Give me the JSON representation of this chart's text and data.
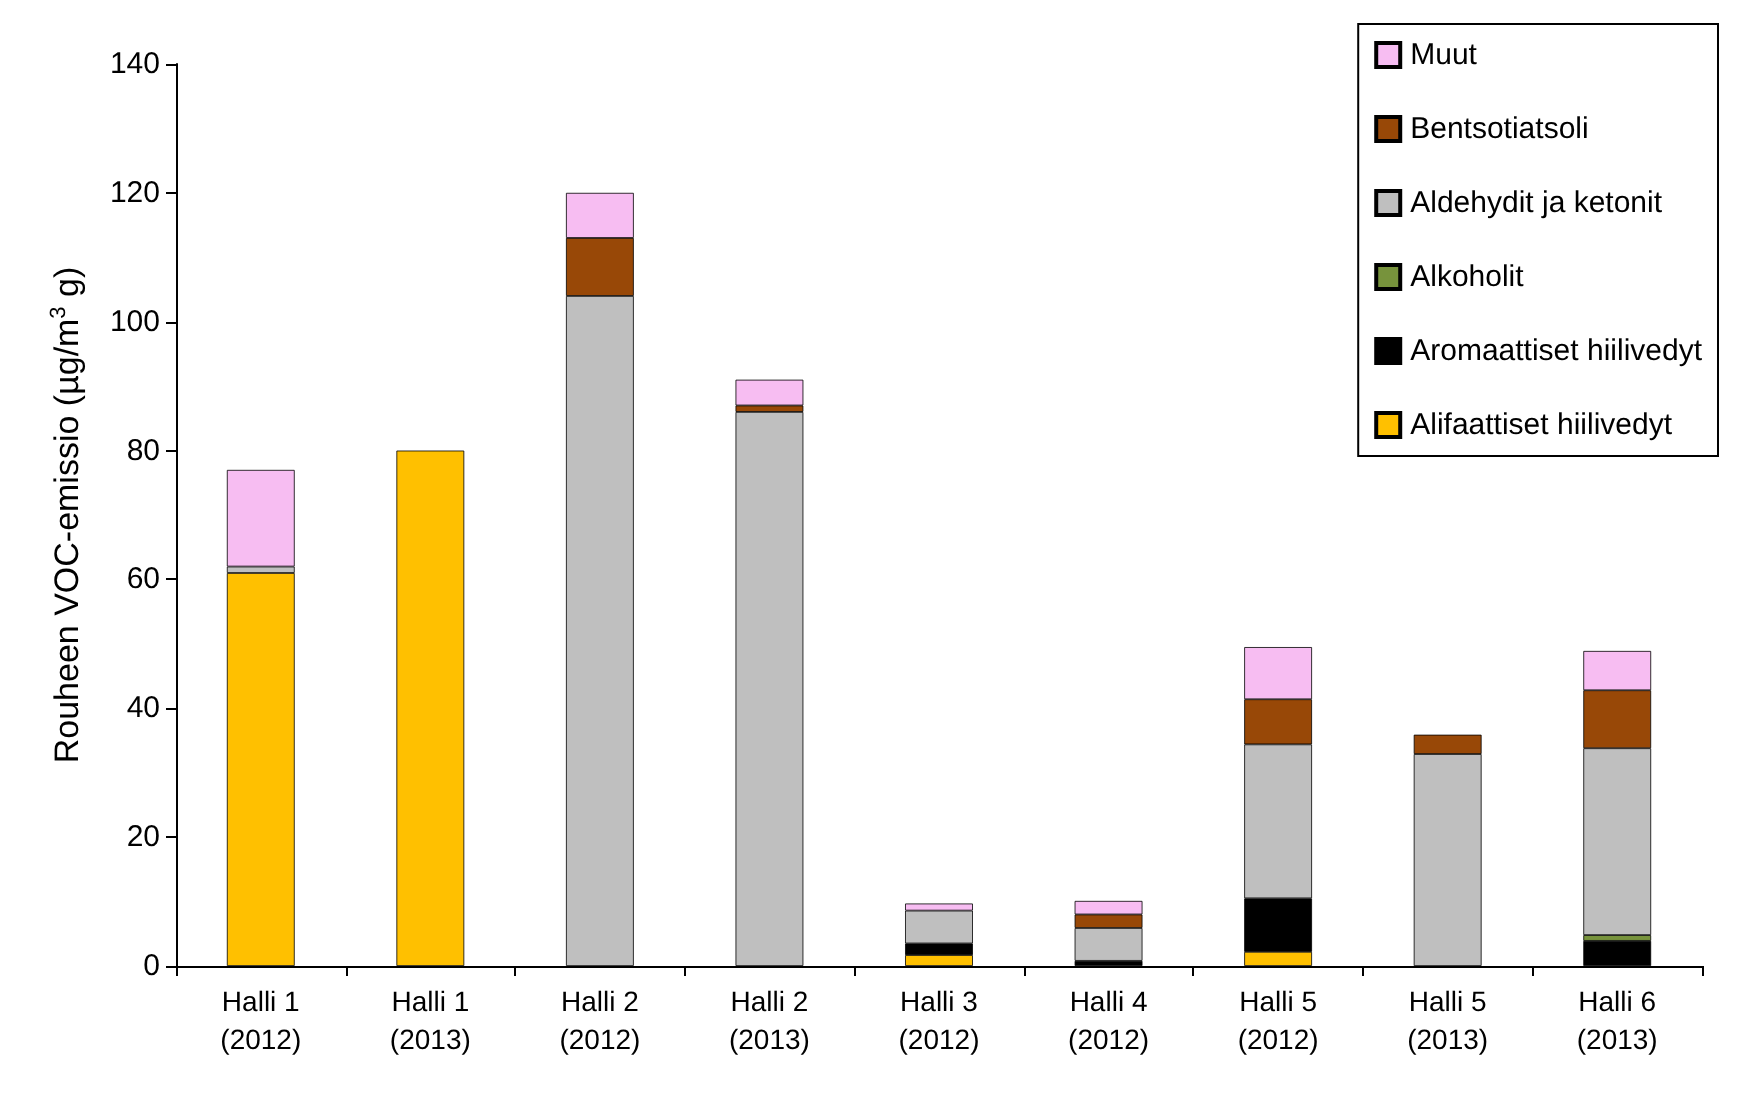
{
  "chart_data": {
    "type": "bar",
    "stacked": true,
    "ylabel": "Rouheen VOC-emissio (µg/m$^{3}$ g)",
    "categories": [
      "Halli 1\n(2012)",
      "Halli 1\n(2013)",
      "Halli 2\n(2012)",
      "Halli 2\n(2013)",
      "Halli 3\n(2012)",
      "Halli 4\n(2012)",
      "Halli 5\n(2012)",
      "Halli 5\n(2013)",
      "Halli 6\n(2013)"
    ],
    "series": [
      {
        "name": "Alifaattiset hiilivedyt",
        "color": "#ffc000",
        "values": [
          61,
          80,
          null,
          null,
          1.7,
          null,
          2.2,
          null,
          null
        ]
      },
      {
        "name": "Aromaattiset hiilivedyt",
        "color": "#000000",
        "values": [
          null,
          null,
          null,
          null,
          1.8,
          0.8,
          8.3,
          null,
          3.9
        ]
      },
      {
        "name": "Alkoholit",
        "color": "#77933c",
        "values": [
          null,
          null,
          null,
          null,
          null,
          null,
          null,
          null,
          0.9
        ]
      },
      {
        "name": "Aldehydit ja ketonit",
        "color": "#bfbfbf",
        "values": [
          1,
          null,
          104,
          86,
          5.1,
          5.1,
          23.9,
          32.9,
          29
        ]
      },
      {
        "name": "Bentsotiatsoli",
        "color": "#984807",
        "values": [
          null,
          null,
          9,
          1,
          null,
          2.1,
          7,
          3,
          9
        ]
      },
      {
        "name": "Muut",
        "color": "#f7bdf2",
        "values": [
          15,
          null,
          7,
          4,
          1.1,
          2.1,
          8.1,
          null,
          6.1
        ]
      }
    ],
    "ylim": [
      0,
      140
    ],
    "yticks": [
      0,
      20,
      40,
      60,
      80,
      100,
      120,
      140
    ],
    "grid": false,
    "legend": "top right"
  }
}
